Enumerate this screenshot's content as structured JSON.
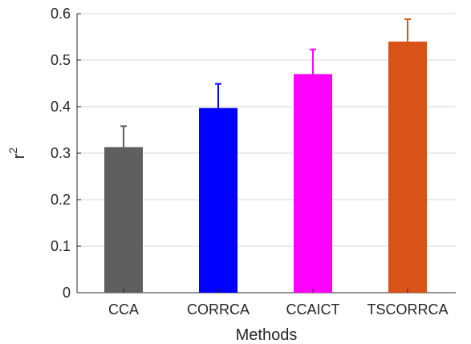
{
  "chart_data": {
    "type": "bar",
    "categories": [
      "CCA",
      "CORRCA",
      "CCAICT",
      "TSCORRCA"
    ],
    "values": [
      0.313,
      0.397,
      0.47,
      0.54
    ],
    "errors": [
      0.045,
      0.052,
      0.053,
      0.048
    ],
    "colors": [
      "#5f5f5f",
      "#0000ff",
      "#ff00ff",
      "#d95319"
    ],
    "xlabel": "Methods",
    "ylabel_base": "r",
    "ylabel_superscript": "2",
    "ylim": [
      0,
      0.6
    ],
    "yticks": [
      "0",
      "0.1",
      "0.2",
      "0.3",
      "0.4",
      "0.5",
      "0.6"
    ],
    "grid": true
  }
}
